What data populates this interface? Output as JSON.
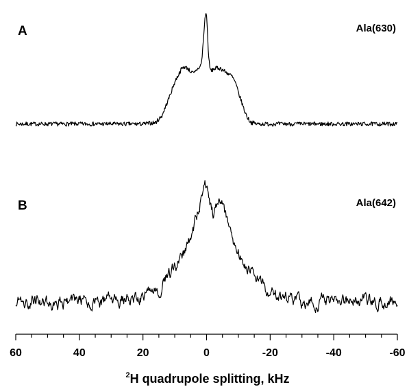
{
  "chart_data": {
    "type": "line",
    "xlabel": {
      "sup": "2",
      "main": "H quadrupole splitting, kHz"
    },
    "xlim": [
      60,
      -60
    ],
    "x_reversed": true,
    "xticks": [
      60,
      40,
      20,
      0,
      -20,
      -40,
      -60
    ],
    "xtick_labels": [
      "60",
      "40",
      "20",
      "0",
      "-20",
      "-40",
      "-60"
    ],
    "y_units": "arbitrary intensity (not printed)",
    "panels": [
      {
        "letter": "A",
        "series_name": "Ala(630)",
        "noise": 0.05,
        "x": [
          60,
          40,
          20,
          16,
          14,
          12,
          10,
          8,
          7,
          6,
          5,
          4,
          3,
          2,
          1.5,
          1,
          0.6,
          0.3,
          0,
          -0.3,
          -0.6,
          -1,
          -1.5,
          -2,
          -3,
          -4,
          -5,
          -6,
          -7,
          -8,
          -9,
          -10,
          -11,
          -12,
          -13,
          -14,
          -16,
          -20,
          -40,
          -60
        ],
        "y": [
          0,
          0,
          0,
          0.02,
          0.12,
          0.35,
          0.6,
          0.78,
          0.82,
          0.8,
          0.75,
          0.72,
          0.78,
          0.82,
          0.9,
          1.2,
          1.45,
          1.6,
          1.55,
          1.3,
          1.0,
          0.8,
          0.76,
          0.78,
          0.8,
          0.8,
          0.78,
          0.74,
          0.72,
          0.68,
          0.6,
          0.45,
          0.32,
          0.18,
          0.08,
          0.02,
          0,
          0,
          0,
          0
        ]
      },
      {
        "letter": "B",
        "series_name": "Ala(642)",
        "noise": 0.06,
        "x": [
          60,
          30,
          24,
          20,
          18,
          16,
          14,
          12,
          10,
          8,
          6,
          5,
          4,
          3,
          2,
          1,
          0.5,
          0,
          -0.5,
          -1,
          -2,
          -3,
          -4,
          -5,
          -6,
          -7,
          -8,
          -9,
          -10,
          -12,
          -14,
          -16,
          -18,
          -20,
          -24,
          -30,
          -60
        ],
        "y": [
          0,
          0,
          0.03,
          0.05,
          0.08,
          0.12,
          0.18,
          0.26,
          0.34,
          0.42,
          0.55,
          0.65,
          0.75,
          0.88,
          1.02,
          1.15,
          1.2,
          1.18,
          1.1,
          0.98,
          0.9,
          0.95,
          1.0,
          0.98,
          0.88,
          0.72,
          0.62,
          0.56,
          0.5,
          0.4,
          0.3,
          0.22,
          0.14,
          0.08,
          0.03,
          0,
          0
        ]
      }
    ]
  }
}
